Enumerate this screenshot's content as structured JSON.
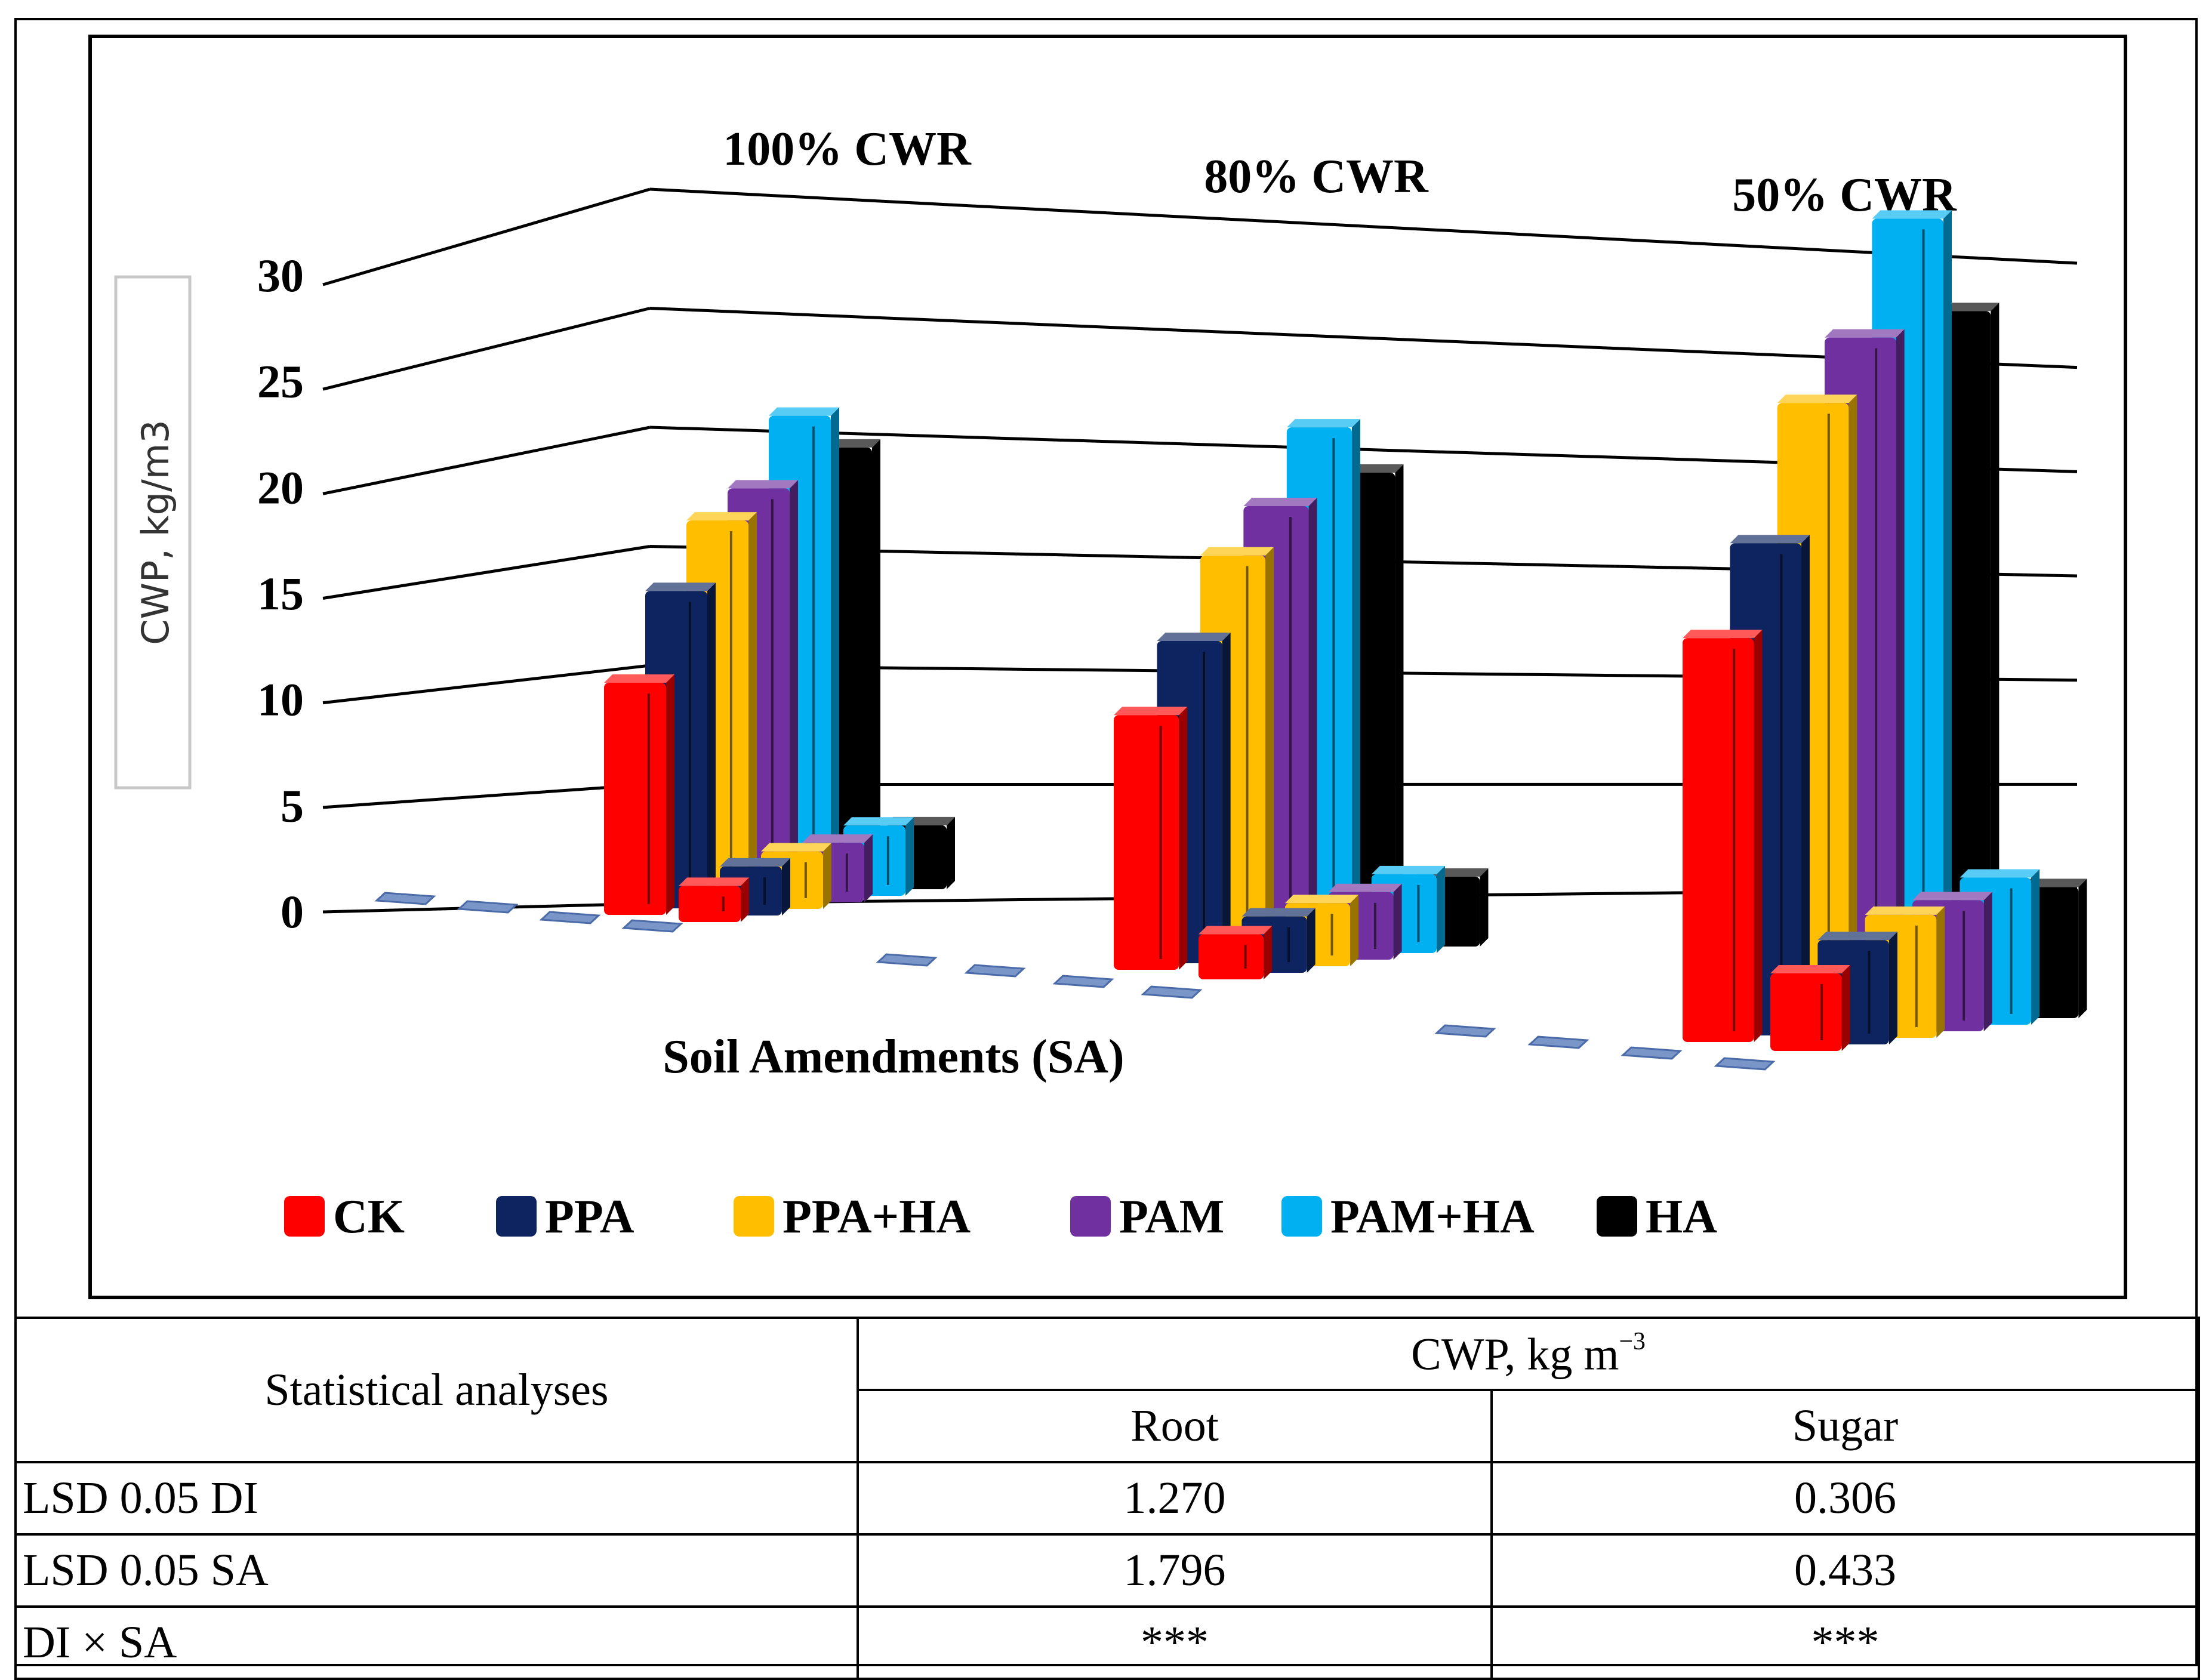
{
  "chart_data": {
    "type": "bar3d",
    "title": "",
    "ylabel": "CWP, kg/m3",
    "xlabel": "Soil Amendments (SA)",
    "ylim": [
      0,
      30
    ],
    "yticks": [
      0,
      5,
      10,
      15,
      20,
      25,
      30
    ],
    "groups": [
      "100% CWR",
      "80% CWR",
      "50% CWR"
    ],
    "series": [
      {
        "name": "CK",
        "color": "#ff0000",
        "back": [
          10.9,
          11.3,
          15.1
        ],
        "front": [
          1.7,
          2.0,
          2.9
        ]
      },
      {
        "name": "PPA",
        "color": "#0e2460",
        "back": [
          14.9,
          14.3,
          18.4
        ],
        "front": [
          2.3,
          2.5,
          3.9
        ]
      },
      {
        "name": "PPA+HA",
        "color": "#ffbf00",
        "back": [
          17.9,
          17.8,
          23.4
        ],
        "front": [
          2.7,
          2.8,
          4.6
        ]
      },
      {
        "name": "PAM",
        "color": "#7030a0",
        "back": [
          19.1,
          19.7,
          25.6
        ],
        "front": [
          2.8,
          3.0,
          4.9
        ]
      },
      {
        "name": "PAM+HA",
        "color": "#00b0f0",
        "back": [
          22.2,
          22.9,
          29.8
        ],
        "front": [
          3.3,
          3.5,
          5.5
        ]
      },
      {
        "name": "HA",
        "color": "#000000",
        "back": [
          20.4,
          20.6,
          26.1
        ],
        "front": [
          3.0,
          3.1,
          4.9
        ]
      }
    ]
  },
  "table": {
    "header_left": "Statistical analyses",
    "header_group": "CWP, kg m",
    "header_group_sup": "−3",
    "col_root": "Root",
    "col_sugar": "Sugar",
    "rows": [
      {
        "label": "LSD 0.05 DI",
        "root": "1.270",
        "sugar": "0.306"
      },
      {
        "label": "LSD 0.05 SA",
        "root": "1.796",
        "sugar": "0.433"
      },
      {
        "label": "DI × SA",
        "root": "***",
        "sugar": "***"
      }
    ]
  }
}
